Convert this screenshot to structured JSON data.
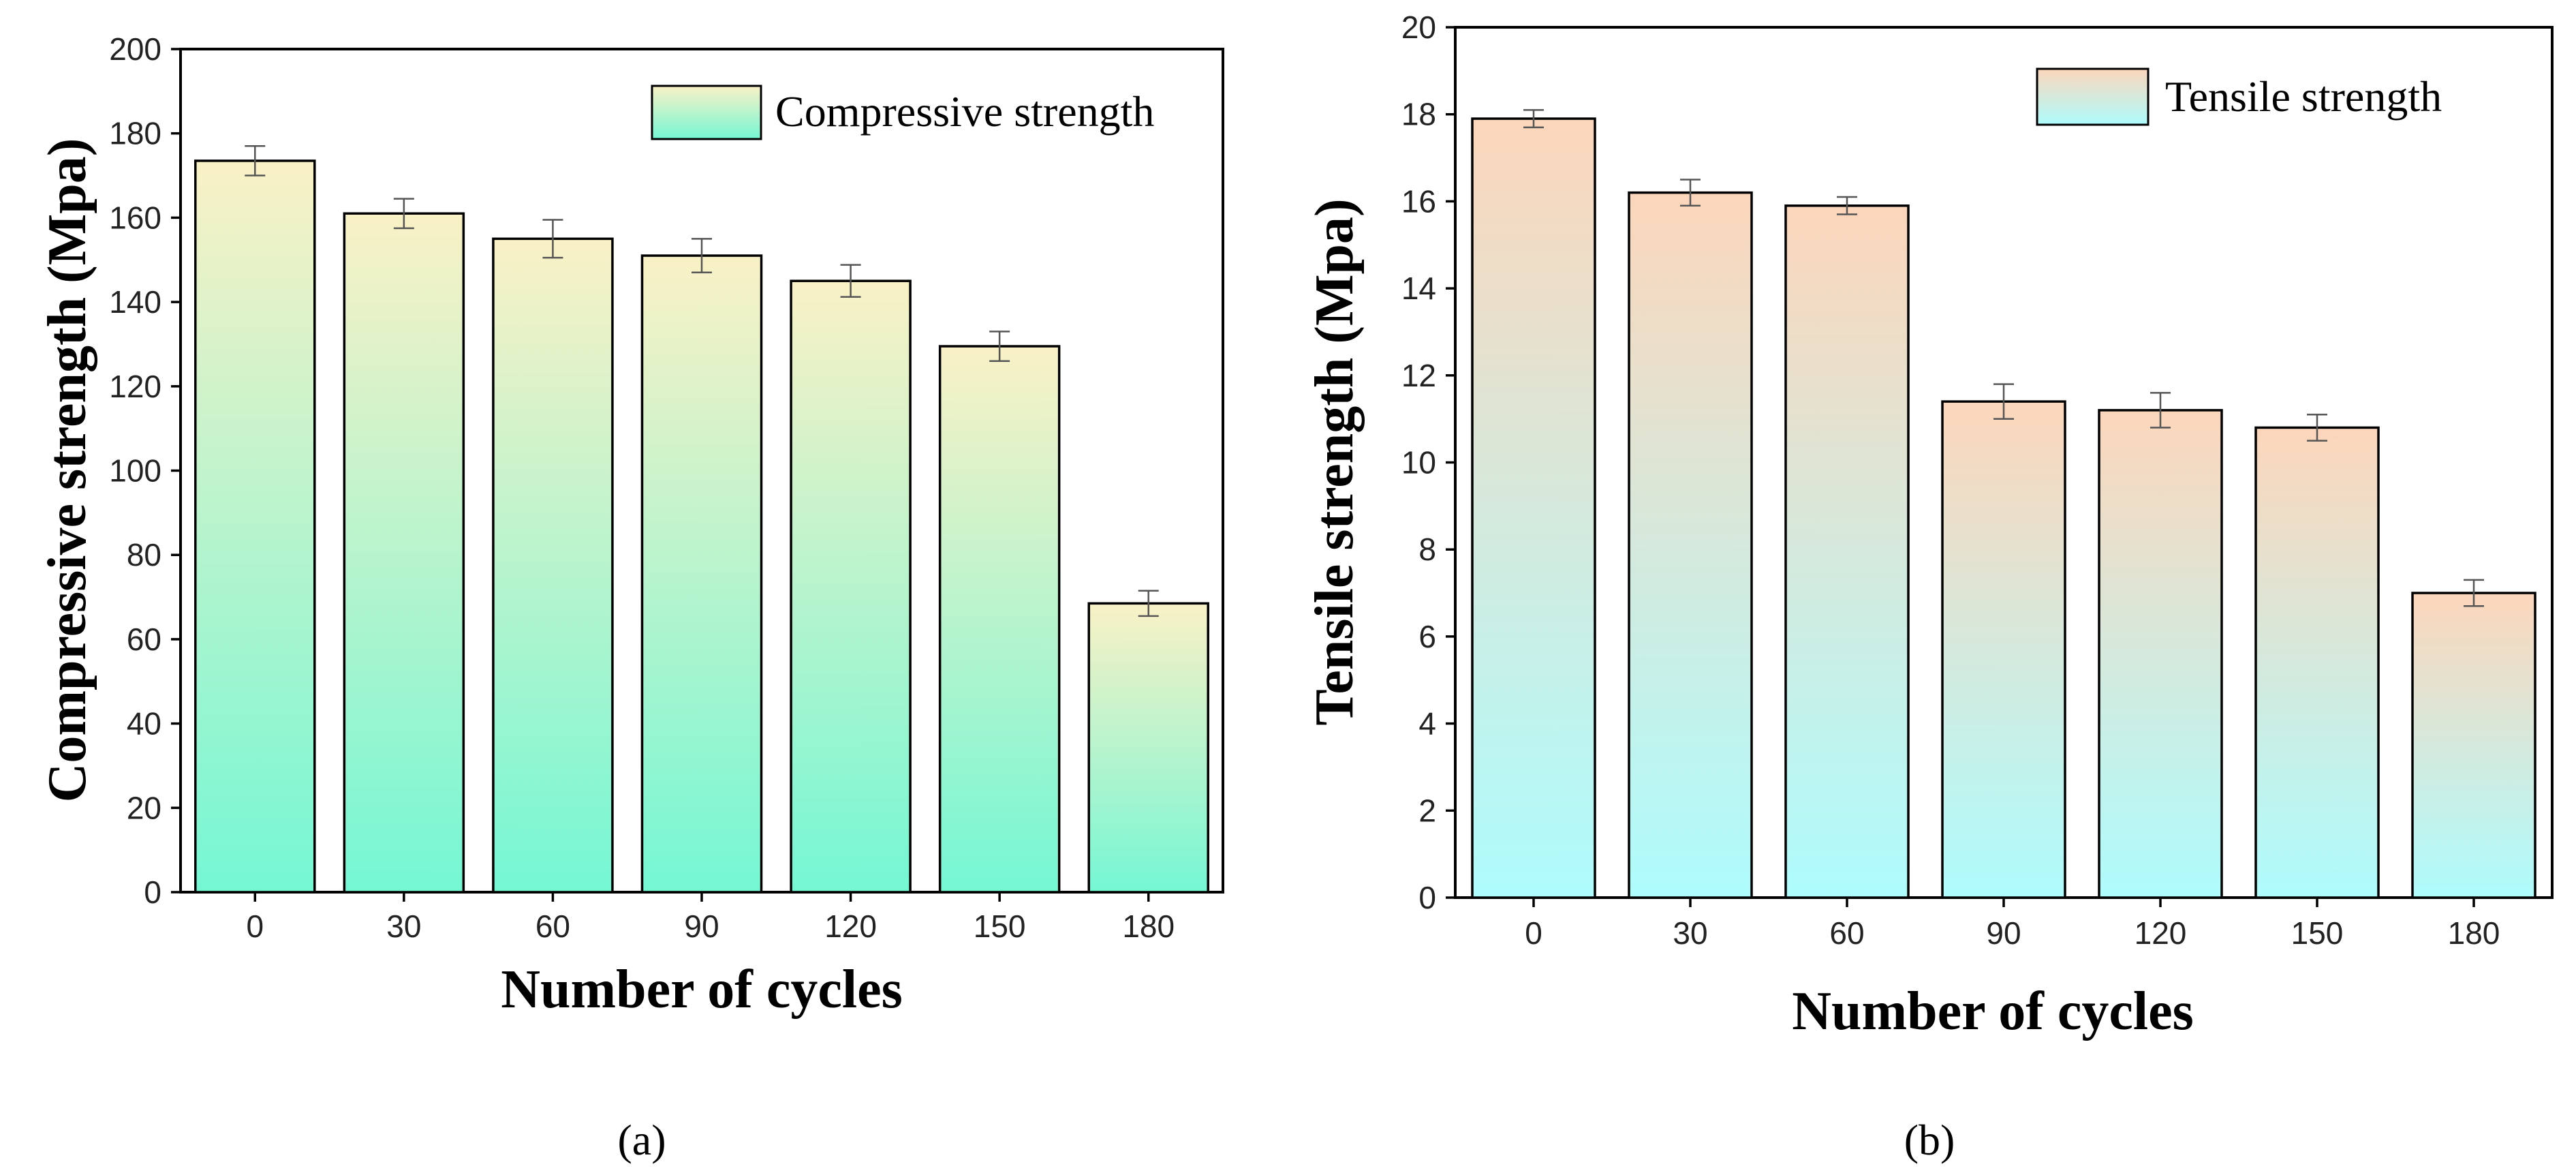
{
  "chart_data": [
    {
      "type": "bar",
      "panel_label": "(a)",
      "categories": [
        "0",
        "30",
        "60",
        "90",
        "120",
        "150",
        "180"
      ],
      "values": [
        173.5,
        161,
        155,
        151,
        145,
        129.5,
        68.5
      ],
      "errors": [
        3.5,
        3.5,
        4.5,
        4,
        3.8,
        3.5,
        3
      ],
      "series_name": "Compressive strength",
      "title": "",
      "xlabel": "Number of cycles",
      "ylabel": "Compressive strength (Mpa)",
      "ylim": [
        0,
        200
      ],
      "yticks": [
        0,
        20,
        40,
        60,
        80,
        100,
        120,
        140,
        160,
        180,
        200
      ],
      "legend_position": "top-right",
      "gradient_top": "#faf1c6",
      "gradient_bottom": "#75f7d4",
      "grid": false
    },
    {
      "type": "bar",
      "panel_label": "(b)",
      "categories": [
        "0",
        "30",
        "60",
        "90",
        "120",
        "150",
        "180"
      ],
      "values": [
        17.9,
        16.2,
        15.9,
        11.4,
        11.2,
        10.8,
        7.0
      ],
      "errors": [
        0.2,
        0.3,
        0.2,
        0.4,
        0.4,
        0.3,
        0.3
      ],
      "series_name": "Tensile strength",
      "title": "",
      "xlabel": "Number of cycles",
      "ylabel": "Tensile strength (Mpa)",
      "ylim": [
        0,
        20
      ],
      "yticks": [
        0,
        2,
        4,
        6,
        8,
        10,
        12,
        14,
        16,
        18,
        20
      ],
      "legend_position": "top-right",
      "gradient_top": "#fcd6bb",
      "gradient_bottom": "#aefcfd",
      "grid": false
    }
  ]
}
